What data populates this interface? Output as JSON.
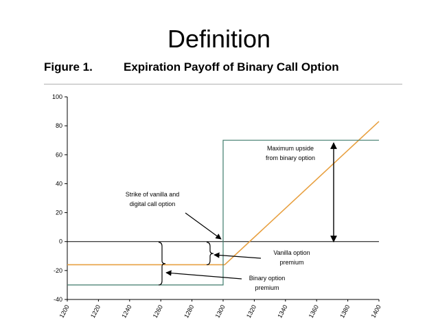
{
  "slide": {
    "title": "Definition"
  },
  "figure": {
    "label": "Figure 1.",
    "title": "Expiration Payoff of Binary Call Option"
  },
  "colors": {
    "vanilla": "#e8a040",
    "binary": "#3d7a6a",
    "axis": "#000000"
  },
  "chart_data": {
    "type": "line",
    "title": "Expiration Payoff of Binary Call Option",
    "xlim": [
      1200,
      1400
    ],
    "ylim": [
      -40,
      100
    ],
    "x_ticks": [
      1200,
      1220,
      1240,
      1260,
      1280,
      1300,
      1320,
      1340,
      1360,
      1380,
      1400
    ],
    "y_ticks": [
      100,
      80,
      60,
      40,
      20,
      0,
      -20,
      -40
    ],
    "grid": false,
    "series": [
      {
        "key": "vanilla",
        "x": [
          1200,
          1301,
          1400
        ],
        "y": [
          -16,
          -16,
          83
        ]
      },
      {
        "key": "binary",
        "x": [
          1200,
          1300,
          1300,
          1400
        ],
        "y": [
          -30,
          -30,
          70,
          70
        ]
      }
    ],
    "annotations": {
      "strike": [
        "Strike of vanilla and",
        "digital call option"
      ],
      "max_upside": [
        "Maximum upside",
        "from binary option"
      ],
      "vanilla_premium": [
        "Vanilla option",
        "premium"
      ],
      "binary_premium": [
        "Binary option",
        "premium"
      ]
    }
  }
}
